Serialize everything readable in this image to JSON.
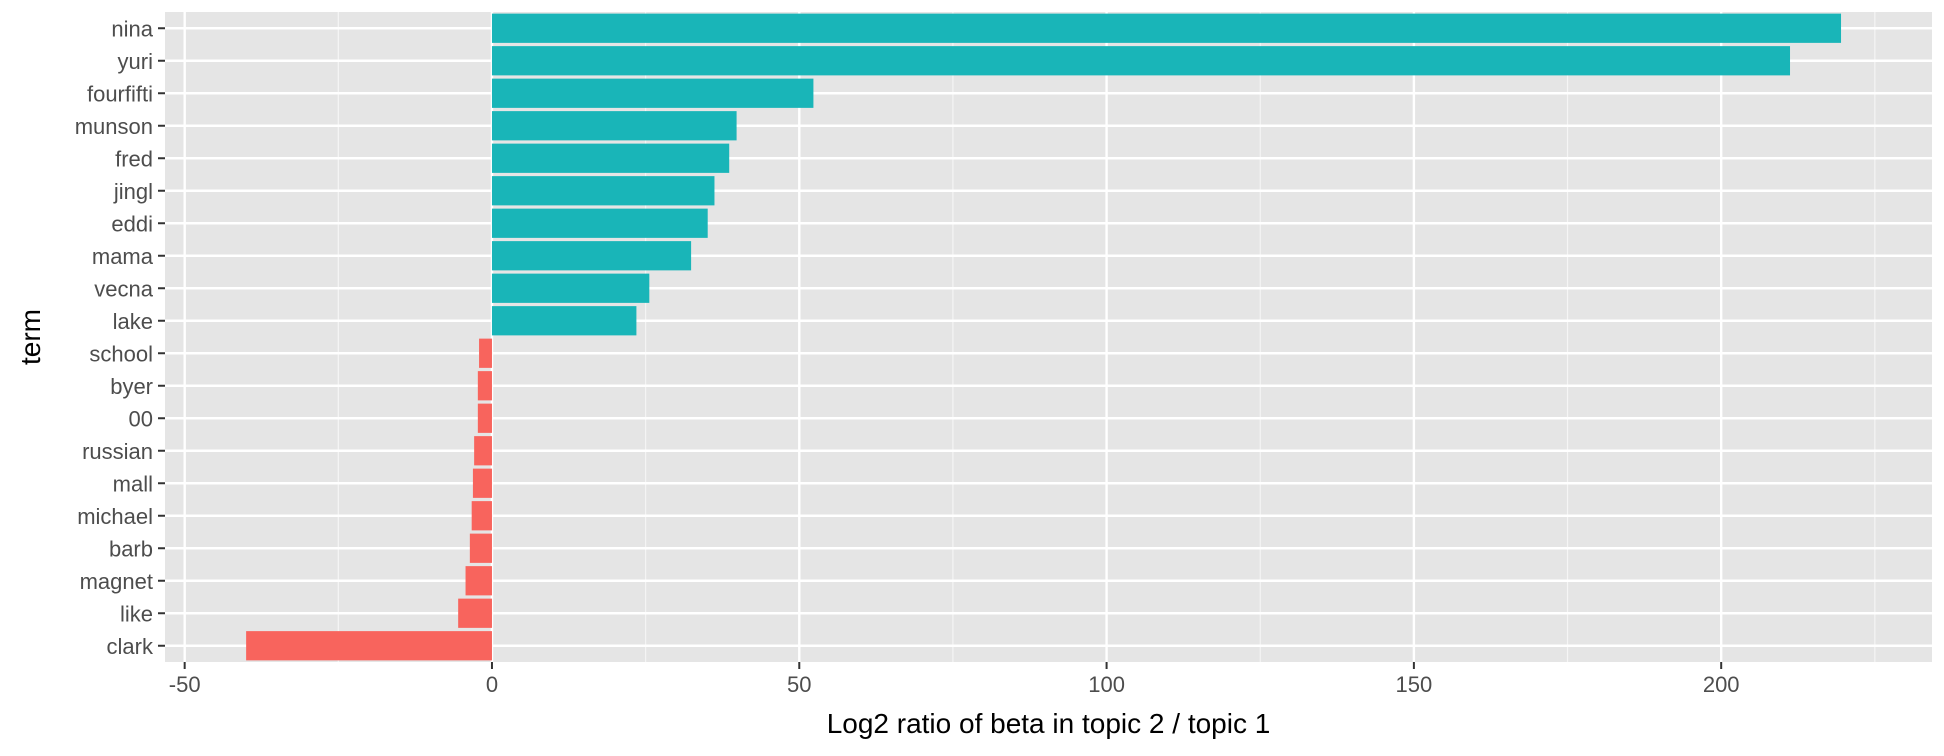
{
  "chart_data": {
    "type": "bar",
    "orientation": "horizontal",
    "xlabel": "Log2 ratio of beta in topic 2 / topic 1",
    "ylabel": "term",
    "xlim": [
      -53.2,
      234.3
    ],
    "x_ticks": [
      -50,
      0,
      50,
      100,
      150,
      200
    ],
    "x_tick_labels": [
      "-50",
      "0",
      "50",
      "100",
      "150",
      "200"
    ],
    "grid": true,
    "legend": "none",
    "colors": {
      "positive": "#19B5B8",
      "negative": "#F8645D",
      "panel": "#E5E5E5",
      "grid": "#FFFFFF"
    },
    "categories": [
      "nina",
      "yuri",
      "fourfifti",
      "munson",
      "fred",
      "jingl",
      "eddi",
      "mama",
      "vecna",
      "lake",
      "school",
      "byer",
      "00",
      "russian",
      "mall",
      "michael",
      "barb",
      "magnet",
      "like",
      "clark"
    ],
    "values": [
      219.5,
      211.2,
      52.3,
      39.8,
      38.6,
      36.2,
      35.1,
      32.4,
      25.6,
      23.5,
      -2.1,
      -2.3,
      -2.3,
      -2.9,
      -3.1,
      -3.3,
      -3.6,
      -4.3,
      -5.5,
      -40.0
    ]
  }
}
